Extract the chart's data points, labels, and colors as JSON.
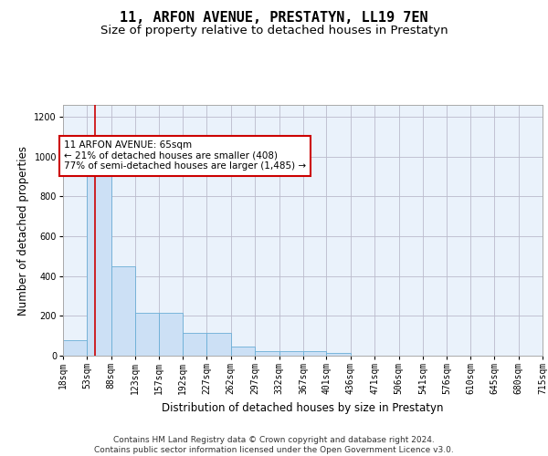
{
  "title": "11, ARFON AVENUE, PRESTATYN, LL19 7EN",
  "subtitle": "Size of property relative to detached houses in Prestatyn",
  "xlabel": "Distribution of detached houses by size in Prestatyn",
  "ylabel": "Number of detached properties",
  "bar_edges": [
    18,
    53,
    88,
    123,
    157,
    192,
    227,
    262,
    297,
    332,
    367,
    401,
    436,
    471,
    506,
    541,
    576,
    610,
    645,
    680,
    715
  ],
  "bar_heights": [
    80,
    975,
    450,
    215,
    215,
    115,
    115,
    48,
    25,
    22,
    22,
    12,
    0,
    0,
    0,
    0,
    0,
    0,
    0,
    0
  ],
  "bar_color": "#cce0f5",
  "bar_edge_color": "#6aaed6",
  "property_size": 65,
  "property_line_color": "#cc0000",
  "annotation_text": "11 ARFON AVENUE: 65sqm\n← 21% of detached houses are smaller (408)\n77% of semi-detached houses are larger (1,485) →",
  "annotation_box_color": "#ffffff",
  "annotation_box_edge_color": "#cc0000",
  "ylim": [
    0,
    1260
  ],
  "yticks": [
    0,
    200,
    400,
    600,
    800,
    1000,
    1200
  ],
  "footer_line1": "Contains HM Land Registry data © Crown copyright and database right 2024.",
  "footer_line2": "Contains public sector information licensed under the Open Government Licence v3.0.",
  "background_color": "#ffffff",
  "ax_background_color": "#eaf2fb",
  "grid_color": "#bbbbcc",
  "title_fontsize": 11,
  "subtitle_fontsize": 9.5,
  "tick_label_fontsize": 7,
  "ylabel_fontsize": 8.5,
  "xlabel_fontsize": 8.5,
  "annotation_fontsize": 7.5,
  "footer_fontsize": 6.5
}
